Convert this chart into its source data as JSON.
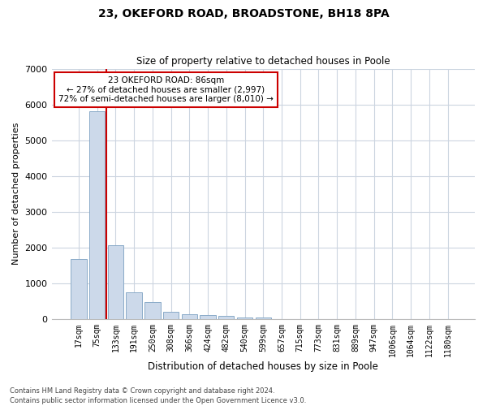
{
  "title1": "23, OKEFORD ROAD, BROADSTONE, BH18 8PA",
  "title2": "Size of property relative to detached houses in Poole",
  "xlabel": "Distribution of detached houses by size in Poole",
  "ylabel": "Number of detached properties",
  "footer1": "Contains HM Land Registry data © Crown copyright and database right 2024.",
  "footer2": "Contains public sector information licensed under the Open Government Licence v3.0.",
  "annotation_line1": "23 OKEFORD ROAD: 86sqm",
  "annotation_line2": "← 27% of detached houses are smaller (2,997)",
  "annotation_line3": "72% of semi-detached houses are larger (8,010) →",
  "bar_color": "#ccd9ea",
  "bar_edge_color": "#8aaac8",
  "vline_color": "#cc0000",
  "annotation_box_color": "#ffffff",
  "annotation_box_edge": "#cc0000",
  "background_color": "#ffffff",
  "grid_color": "#ccd5e0",
  "categories": [
    "17sqm",
    "75sqm",
    "133sqm",
    "191sqm",
    "250sqm",
    "308sqm",
    "366sqm",
    "424sqm",
    "482sqm",
    "540sqm",
    "599sqm",
    "657sqm",
    "715sqm",
    "773sqm",
    "831sqm",
    "889sqm",
    "947sqm",
    "1006sqm",
    "1064sqm",
    "1122sqm",
    "1180sqm"
  ],
  "values": [
    1680,
    5820,
    2060,
    750,
    480,
    210,
    130,
    105,
    80,
    55,
    35,
    10,
    5,
    0,
    0,
    0,
    0,
    0,
    0,
    0,
    0
  ],
  "ylim": [
    0,
    7000
  ],
  "yticks": [
    0,
    1000,
    2000,
    3000,
    4000,
    5000,
    6000,
    7000
  ],
  "vline_x": 1.5,
  "figwidth": 6.0,
  "figheight": 5.0,
  "dpi": 100
}
